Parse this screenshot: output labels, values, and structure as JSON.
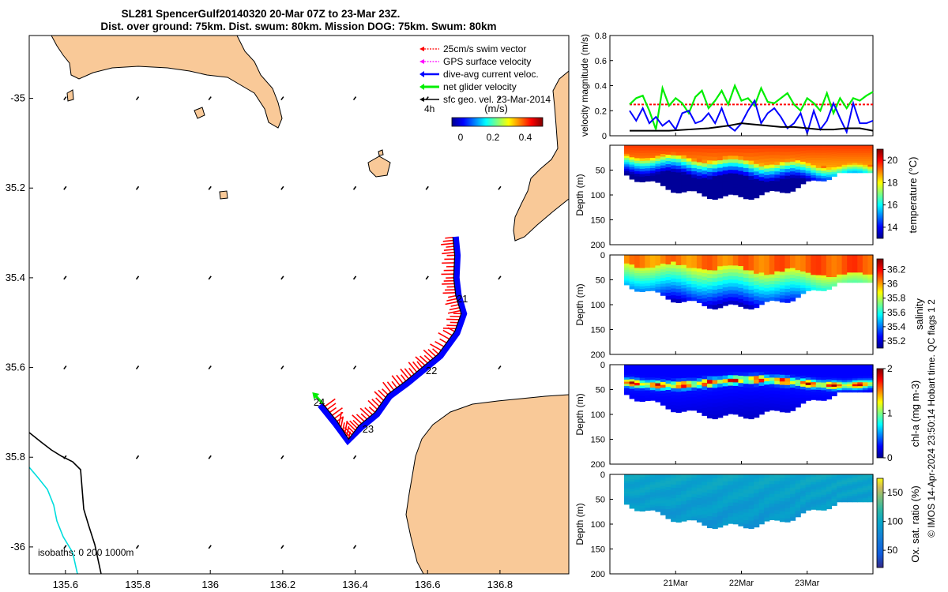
{
  "header": {
    "title_line1": "SL281 SpencerGulf20140320 20-Mar 07Z to 23-Mar 23Z.",
    "title_line2": "Dist. over ground: 75km. Dist. swum: 80km. Mission DOG: 75km. Swum: 80km"
  },
  "colors": {
    "land": "#f9c998",
    "swim_vector": "#ff0000",
    "gps_velocity": "#ff00ff",
    "dive_avg_current": "#0000ff",
    "net_glider_velocity": "#00ee00",
    "sfc_geo_velocity": "#000000",
    "isobath_200": "#000000",
    "isobath_1000": "#00dddd"
  },
  "chart_data": [
    {
      "type": "map",
      "name": "glider track map",
      "xticks": [
        "135.6",
        "135.8",
        "136",
        "136.2",
        "136.4",
        "136.6",
        "136.8"
      ],
      "xtick_values": [
        135.6,
        135.8,
        136.0,
        136.2,
        136.4,
        136.6,
        136.8
      ],
      "yticks": [
        "-35",
        "35.2",
        "35.4",
        "35.6",
        "35.8",
        "-36"
      ],
      "ytick_values": [
        -35.0,
        -35.2,
        -35.4,
        -35.6,
        -35.8,
        -36.0
      ],
      "xlim": [
        135.5,
        136.99
      ],
      "ylim": [
        -36.06,
        -34.86
      ],
      "legend": [
        {
          "label": "25cm/s swim vector",
          "color": "#ff0000"
        },
        {
          "label": "GPS surface velocity",
          "color": "#ff00ff"
        },
        {
          "label": "dive-avg current veloc.",
          "color": "#0000ff"
        },
        {
          "label": "net glider velocity",
          "color": "#00ee00"
        },
        {
          "label": "sfc geo. vel. 23-Mar-2014",
          "color": "#000000"
        }
      ],
      "legend_time_label": "4h",
      "colorbar": {
        "title": "(m/s)",
        "ticks": [
          "0",
          "0.2",
          "0.4"
        ],
        "range": [
          0,
          0.5
        ]
      },
      "track": [
        [
          136.67,
          -35.31
        ],
        [
          136.675,
          -35.35
        ],
        [
          136.672,
          -35.4
        ],
        [
          136.678,
          -35.44
        ],
        [
          136.693,
          -35.48
        ],
        [
          136.675,
          -35.52
        ],
        [
          136.63,
          -35.57
        ],
        [
          136.585,
          -35.6
        ],
        [
          136.54,
          -35.63
        ],
        [
          136.49,
          -35.66
        ],
        [
          136.455,
          -35.7
        ],
        [
          136.41,
          -35.73
        ],
        [
          136.382,
          -35.76
        ],
        [
          136.35,
          -35.72
        ],
        [
          136.31,
          -35.68
        ]
      ],
      "day_labels": [
        {
          "text": "21",
          "lon": 136.68,
          "lat": -35.455
        },
        {
          "text": "22",
          "lon": 136.595,
          "lat": -35.615
        },
        {
          "text": "23",
          "lon": 136.42,
          "lat": -35.745
        },
        {
          "text": "24",
          "lon": 136.285,
          "lat": -35.685
        }
      ],
      "isobaths_label": "isobaths: 0   200  1000m"
    },
    {
      "type": "line",
      "name": "velocity magnitude",
      "ylabel": "velocity magnitude (m/s)",
      "ylim": [
        0,
        0.8
      ],
      "yticks": [
        "0",
        "0.2",
        "0.4",
        "0.6",
        "0.8"
      ],
      "xlim_days": [
        20.0,
        24.0
      ],
      "series": [
        {
          "name": "25cm/s swim vector",
          "color": "#ff0000",
          "dashed": true,
          "t": [
            20.3,
            24.0
          ],
          "values": [
            0.25,
            0.25
          ]
        },
        {
          "name": "net glider velocity",
          "color": "#00ee00",
          "t": [
            20.3,
            20.4,
            20.5,
            20.6,
            20.7,
            20.8,
            20.9,
            21.0,
            21.1,
            21.2,
            21.3,
            21.4,
            21.5,
            21.6,
            21.7,
            21.8,
            21.9,
            22.0,
            22.1,
            22.2,
            22.3,
            22.4,
            22.5,
            22.6,
            22.7,
            22.8,
            22.9,
            23.0,
            23.1,
            23.2,
            23.3,
            23.4,
            23.5,
            23.6,
            23.7,
            23.8,
            23.9,
            24.0
          ],
          "values": [
            0.25,
            0.3,
            0.32,
            0.2,
            0.05,
            0.38,
            0.24,
            0.3,
            0.26,
            0.18,
            0.31,
            0.36,
            0.22,
            0.28,
            0.36,
            0.25,
            0.4,
            0.28,
            0.3,
            0.24,
            0.38,
            0.27,
            0.26,
            0.3,
            0.34,
            0.25,
            0.2,
            0.3,
            0.26,
            0.2,
            0.34,
            0.18,
            0.3,
            0.22,
            0.3,
            0.28,
            0.32,
            0.35
          ]
        },
        {
          "name": "dive-avg current veloc.",
          "color": "#0000ff",
          "t": [
            20.3,
            20.4,
            20.5,
            20.6,
            20.7,
            20.8,
            20.9,
            21.0,
            21.1,
            21.2,
            21.3,
            21.4,
            21.5,
            21.6,
            21.7,
            21.8,
            21.9,
            22.0,
            22.1,
            22.2,
            22.3,
            22.4,
            22.5,
            22.6,
            22.7,
            22.8,
            22.9,
            23.0,
            23.1,
            23.2,
            23.3,
            23.4,
            23.5,
            23.6,
            23.7,
            23.8,
            23.9,
            24.0
          ],
          "values": [
            0.2,
            0.12,
            0.22,
            0.1,
            0.15,
            0.08,
            0.12,
            0.05,
            0.18,
            0.2,
            0.1,
            0.12,
            0.18,
            0.1,
            0.22,
            0.08,
            0.04,
            0.1,
            0.2,
            0.28,
            0.1,
            0.18,
            0.22,
            0.15,
            0.06,
            0.1,
            0.18,
            0.02,
            0.2,
            0.05,
            0.12,
            0.26,
            0.14,
            0.03,
            0.26,
            0.1,
            0.1,
            0.12
          ]
        },
        {
          "name": "sfc geo. vel. 23-Mar-2014",
          "color": "#000000",
          "t": [
            20.3,
            20.6,
            20.9,
            21.2,
            21.5,
            21.8,
            22.0,
            22.2,
            22.4,
            22.6,
            22.8,
            23.0,
            23.2,
            23.4,
            23.6,
            23.8,
            24.0
          ],
          "values": [
            0.04,
            0.04,
            0.04,
            0.05,
            0.06,
            0.08,
            0.1,
            0.09,
            0.08,
            0.07,
            0.07,
            0.06,
            0.05,
            0.05,
            0.06,
            0.06,
            0.04
          ]
        }
      ]
    },
    {
      "type": "heatmap",
      "name": "temperature",
      "ylabel": "Depth (m)",
      "yticks": [
        "50",
        "100",
        "150",
        "200"
      ],
      "ylim": [
        0,
        200
      ],
      "colorbar": {
        "label": "temperature (°C)",
        "ticks": [
          "14",
          "16",
          "18",
          "20"
        ],
        "range": [
          13,
          21
        ]
      },
      "surface_value": 19.8,
      "deep_value": 13.6,
      "mixed_layer_depth_start": 20,
      "mixed_layer_depth_end": 45
    },
    {
      "type": "heatmap",
      "name": "salinity",
      "ylabel": "Depth (m)",
      "yticks": [
        "0",
        "50",
        "100",
        "150",
        "200"
      ],
      "ylim": [
        0,
        200
      ],
      "colorbar": {
        "label": "salinity",
        "ticks": [
          "35.2",
          "35.4",
          "35.6",
          "35.8",
          "36",
          "36.2"
        ],
        "range": [
          35.1,
          36.35
        ]
      },
      "surface_value": 36.05,
      "deep_value": 35.3
    },
    {
      "type": "heatmap",
      "name": "chl-a",
      "ylabel": "Depth (m)",
      "yticks": [
        "0",
        "50",
        "100",
        "150",
        "200"
      ],
      "ylim": [
        0,
        200
      ],
      "colorbar": {
        "label": "chl-a (mg m-3)",
        "ticks": [
          "0",
          "1",
          "2"
        ],
        "range": [
          0,
          2
        ]
      },
      "chl_max_depth": 38,
      "chl_max_value": 1.95
    },
    {
      "type": "heatmap",
      "name": "oxygen saturation",
      "ylabel": "Depth (m)",
      "yticks": [
        "0",
        "50",
        "100",
        "150",
        "200"
      ],
      "ylim": [
        0,
        200
      ],
      "xticks": [
        "21Mar",
        "22Mar",
        "23Mar"
      ],
      "colorbar": {
        "label": "Ox. sat. ratio (%)",
        "ticks": [
          "50",
          "100",
          "150"
        ],
        "range": [
          20,
          175
        ]
      },
      "surface_value": 98,
      "deep_value": 90
    }
  ],
  "footer": {
    "credit": "© IMOS 14-Apr-2024 23:50:14 Hobart time. QC flags 1  2"
  }
}
